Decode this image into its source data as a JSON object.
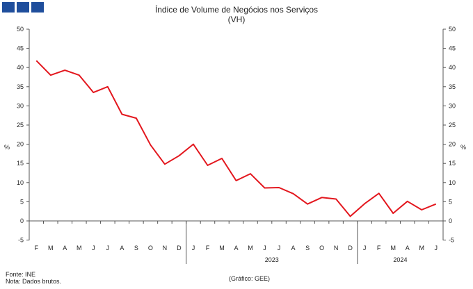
{
  "logo": {
    "blocks": 3,
    "color": "#1f4e9c"
  },
  "chart_data": {
    "type": "line",
    "title": "Índice de Volume de Negócios nos Serviços",
    "subtitle": "(VH)",
    "ylabel_left": "%",
    "ylabel_right": "%",
    "ylim": [
      -5,
      50
    ],
    "yticks": [
      -5,
      0,
      5,
      10,
      15,
      20,
      25,
      30,
      35,
      40,
      45,
      50
    ],
    "line_color": "#e3171e",
    "grid": false,
    "legend": "none",
    "categories": [
      "F",
      "M",
      "A",
      "M",
      "J",
      "J",
      "A",
      "S",
      "O",
      "N",
      "D",
      "J",
      "F",
      "M",
      "A",
      "M",
      "J",
      "J",
      "A",
      "S",
      "O",
      "N",
      "D",
      "J",
      "F",
      "M",
      "A",
      "M",
      "J"
    ],
    "values": [
      41.8,
      38.0,
      39.3,
      38.0,
      33.5,
      35.0,
      27.8,
      26.8,
      19.8,
      14.8,
      17.0,
      20.0,
      14.5,
      16.3,
      10.5,
      12.3,
      8.6,
      8.7,
      7.1,
      4.4,
      6.1,
      5.7,
      1.2,
      4.5,
      7.2,
      2.0,
      5.1,
      2.9,
      4.4
    ],
    "year_labels": [
      {
        "label": "2023",
        "start": 11,
        "end": 22
      },
      {
        "label": "2024",
        "start": 23,
        "end": 28
      }
    ]
  },
  "footer": {
    "source": "Fonte: INE",
    "note": "Nota: Dados brutos.",
    "credit": "(Gráfico: GEE)"
  }
}
